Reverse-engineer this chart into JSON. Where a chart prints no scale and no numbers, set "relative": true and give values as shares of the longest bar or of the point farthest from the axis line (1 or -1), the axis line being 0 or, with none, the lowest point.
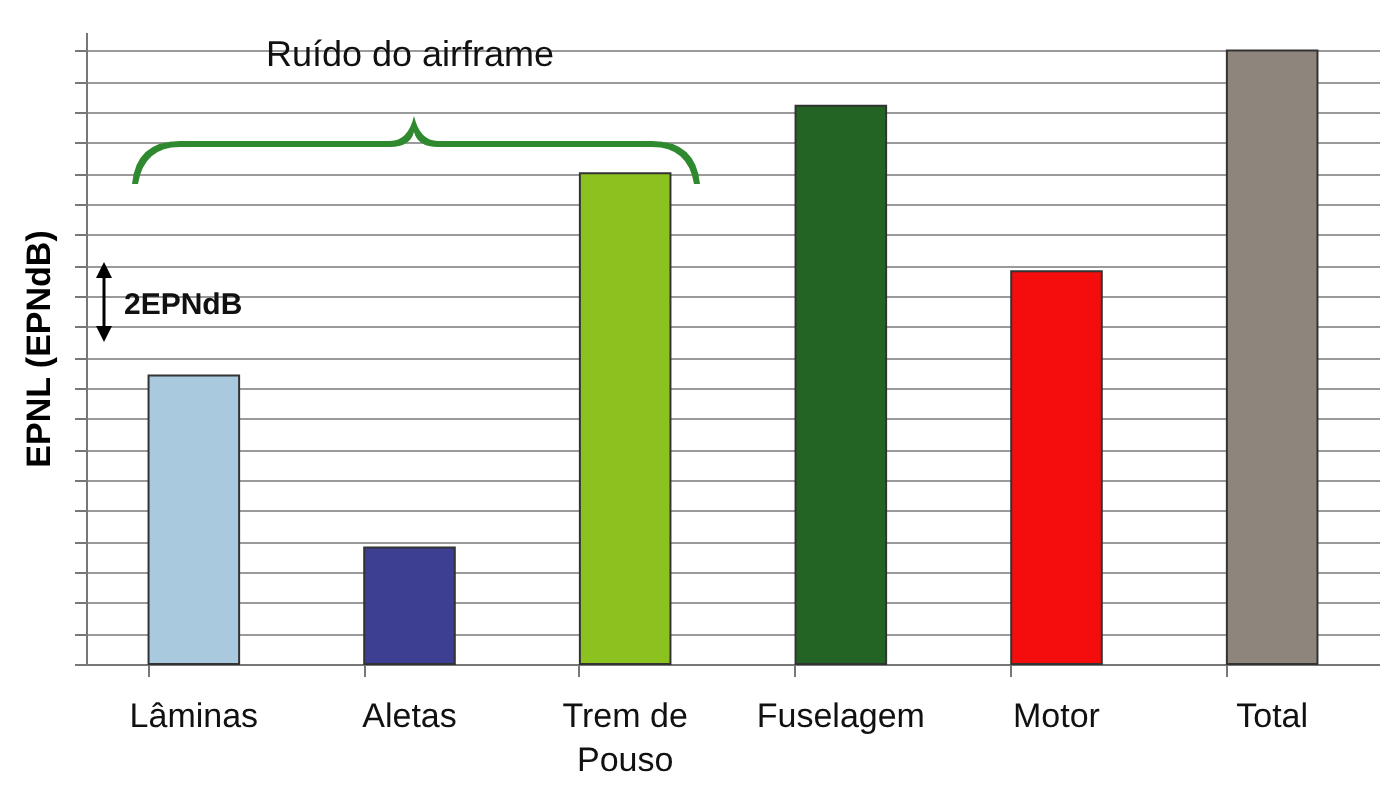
{
  "chart_data": {
    "type": "bar",
    "relative": true,
    "ylabel": "EPNL (EPNdB)",
    "categories": [
      "Lâminas",
      "Aletas",
      "Trem de\nPouso",
      "Fuselagem",
      "Motor",
      "Total"
    ],
    "values": [
      0.47,
      0.19,
      0.8,
      0.91,
      0.64,
      1
    ],
    "colors": [
      "#a8c9de",
      "#3d3f92",
      "#8cc21f",
      "#236323",
      "#f50d0d",
      "#8e857d"
    ],
    "annotations": [
      "Ruído do airframe",
      "2EPNdB"
    ],
    "grid": "y"
  }
}
